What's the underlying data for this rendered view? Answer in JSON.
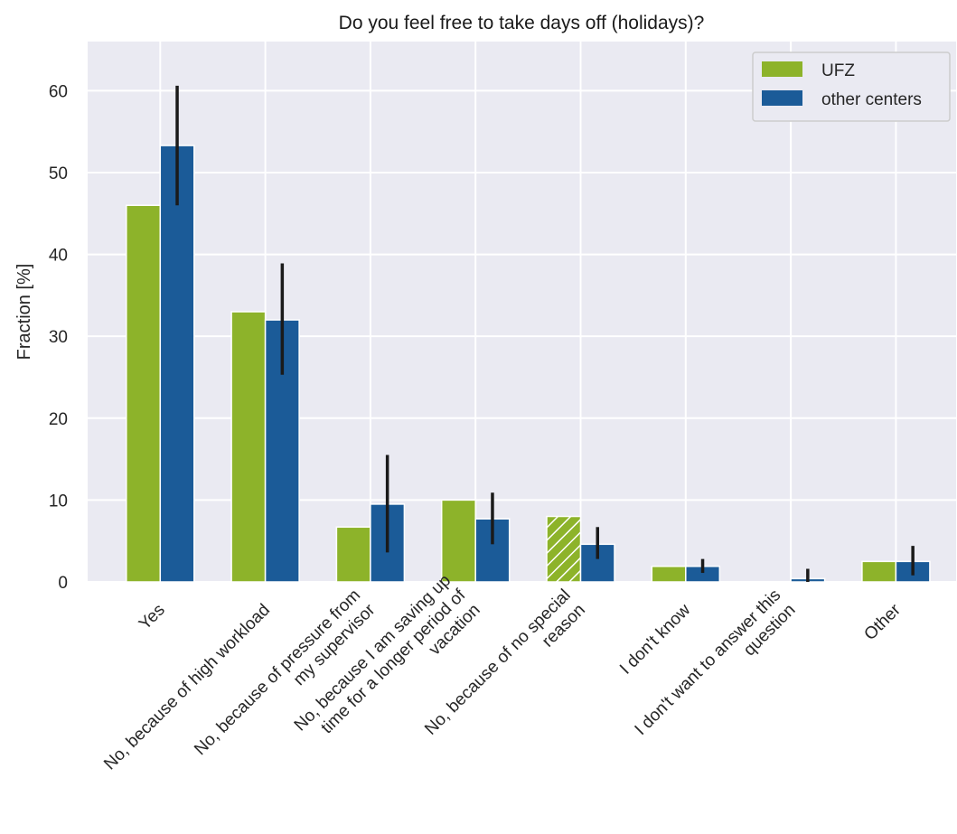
{
  "chart_data": {
    "type": "bar",
    "title": "Do you feel free to take days off (holidays)?",
    "xlabel": "",
    "ylabel": "Fraction [%]",
    "ylim": [
      0,
      66
    ],
    "yticks": [
      0,
      10,
      20,
      30,
      40,
      50,
      60
    ],
    "grid": true,
    "legend_position": "top-right",
    "categories": [
      [
        "Yes"
      ],
      [
        "No, because of high workload"
      ],
      [
        "No, because of pressure from",
        "my supervisor"
      ],
      [
        "No, because I am saving up",
        "time for a longer period of",
        "vacation"
      ],
      [
        "No, because of no special",
        "reason"
      ],
      [
        "I don't know"
      ],
      [
        "I don't want to answer this",
        "question"
      ],
      [
        "Other"
      ]
    ],
    "series": [
      {
        "name": "UFZ",
        "color": "#8db32a",
        "values": [
          46,
          33,
          6.7,
          10,
          8,
          1.9,
          0,
          2.5
        ],
        "hatched": [
          false,
          false,
          false,
          false,
          true,
          false,
          false,
          false
        ]
      },
      {
        "name": "other centers",
        "color": "#1b5b98",
        "values": [
          53.3,
          32,
          9.5,
          7.7,
          4.6,
          1.9,
          0.4,
          2.5
        ],
        "error_low": [
          46,
          25.3,
          3.6,
          4.6,
          2.8,
          1.1,
          0,
          0.8
        ],
        "error_high": [
          60.6,
          38.9,
          15.5,
          10.9,
          6.7,
          2.8,
          1.6,
          4.4
        ]
      }
    ]
  }
}
